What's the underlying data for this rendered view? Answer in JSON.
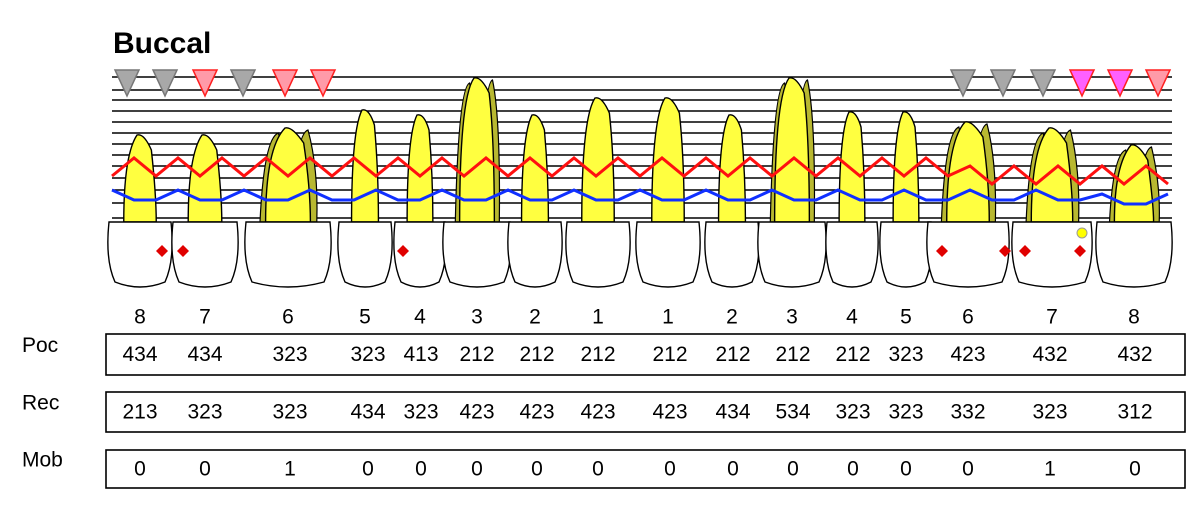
{
  "header": {
    "title": "Buccal"
  },
  "teeth": {
    "numbers": [
      "8",
      "7",
      "6",
      "5",
      "4",
      "3",
      "2",
      "1",
      "1",
      "2",
      "3",
      "4",
      "5",
      "6",
      "7",
      "8"
    ]
  },
  "table": {
    "rows": [
      {
        "label": "Poc",
        "values": [
          "434",
          "434",
          "323",
          "323",
          "413",
          "212",
          "212",
          "212",
          "212",
          "212",
          "212",
          "212",
          "323",
          "423",
          "432",
          "432"
        ]
      },
      {
        "label": "Rec",
        "values": [
          "213",
          "323",
          "323",
          "434",
          "323",
          "423",
          "423",
          "423",
          "423",
          "434",
          "534",
          "323",
          "323",
          "332",
          "323",
          "312"
        ]
      },
      {
        "label": "Mob",
        "values": [
          "0",
          "0",
          "1",
          "0",
          "0",
          "0",
          "0",
          "0",
          "0",
          "0",
          "0",
          "0",
          "0",
          "0",
          "1",
          "0"
        ]
      }
    ]
  }
}
